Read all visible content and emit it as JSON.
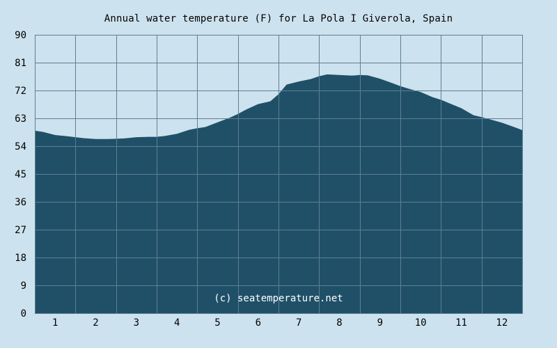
{
  "chart_data": {
    "type": "area",
    "title": "Annual water temperature (F) for La Pola I Giverola, Spain",
    "xlabel": "",
    "ylabel": "",
    "x_ticks": [
      "1",
      "2",
      "3",
      "4",
      "5",
      "6",
      "7",
      "8",
      "9",
      "10",
      "11",
      "12"
    ],
    "y_ticks": [
      0,
      9,
      18,
      27,
      36,
      45,
      54,
      63,
      72,
      81,
      90
    ],
    "xlim": [
      0.5,
      12.5
    ],
    "ylim": [
      0,
      90
    ],
    "grid": true,
    "watermark": "(c) seatemperature.net",
    "colors": {
      "background": "#cce2ee",
      "area_fill": "#1f5068",
      "grid": "#5f7f92"
    },
    "series": [
      {
        "x": [
          0.5,
          0.7,
          1.0,
          1.3,
          1.5,
          1.7,
          2.0,
          2.3,
          2.5,
          2.7,
          3.0,
          3.3,
          3.5,
          3.7,
          4.0,
          4.3,
          4.5,
          4.7,
          5.0,
          5.3,
          5.5,
          5.7,
          6.0,
          6.3,
          6.5,
          6.7,
          7.0,
          7.3,
          7.5,
          7.7,
          8.0,
          8.3,
          8.5,
          8.7,
          9.0,
          9.3,
          9.5,
          9.7,
          10.0,
          10.3,
          10.5,
          10.7,
          11.0,
          11.3,
          11.5,
          11.7,
          12.0,
          12.3,
          12.5
        ],
        "values": [
          59.0,
          58.6,
          57.6,
          57.2,
          56.9,
          56.6,
          56.3,
          56.3,
          56.4,
          56.5,
          56.9,
          57.0,
          57.0,
          57.3,
          58.0,
          59.3,
          59.8,
          60.2,
          61.7,
          63.2,
          64.4,
          65.8,
          67.6,
          68.5,
          70.8,
          73.9,
          74.9,
          75.7,
          76.6,
          77.2,
          77.0,
          76.8,
          77.0,
          76.9,
          75.8,
          74.4,
          73.4,
          72.6,
          71.5,
          69.8,
          69.0,
          67.9,
          66.3,
          64.0,
          63.4,
          62.7,
          61.6,
          60.2,
          59.2
        ]
      }
    ]
  }
}
